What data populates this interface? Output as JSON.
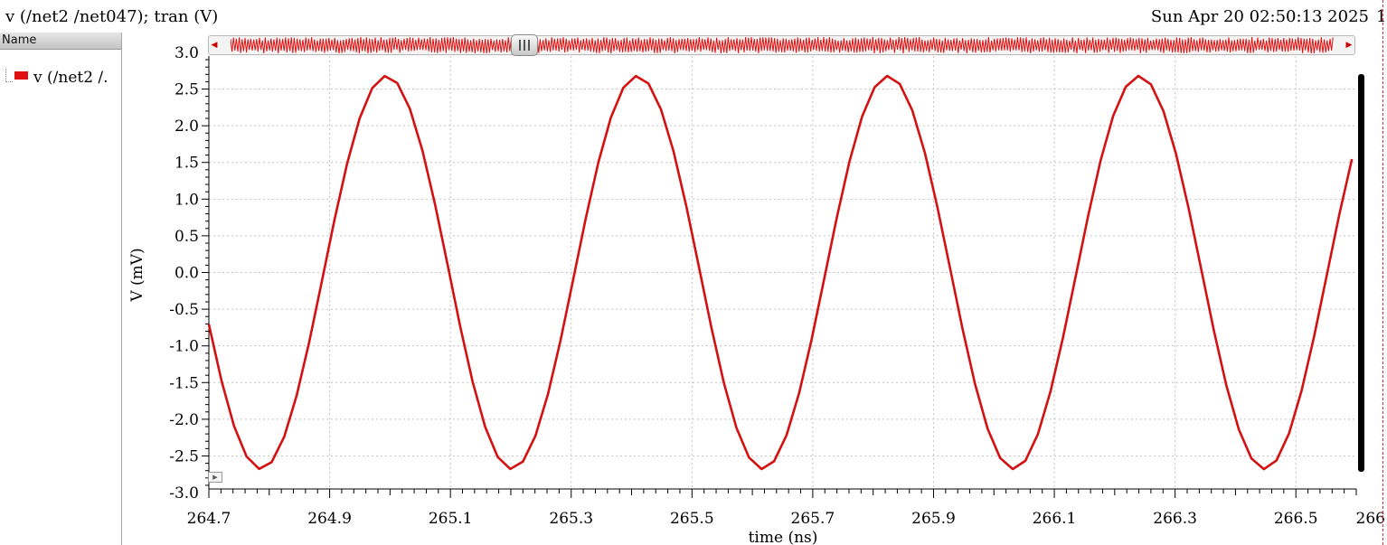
{
  "header": {
    "trace_title": "v (/net2 /net047); tran (V)",
    "timestamp": "Sun Apr 20 02:50:13 2025",
    "edge_fragment": "1"
  },
  "name_panel": {
    "header_label": "Name",
    "items": [
      {
        "label": "v (/net2 /.",
        "color": "#e01010"
      }
    ]
  },
  "icons": {
    "scroll_left": "triangle-left-icon",
    "scroll_right": "triangle-right-icon",
    "play": "play-icon"
  },
  "chart_data": {
    "type": "line",
    "xlabel": "time (ns)",
    "ylabel": "V (mV)",
    "xlim": [
      264.7,
      266.6
    ],
    "ylim": [
      -2.95,
      2.95
    ],
    "grid": true,
    "x_ticks": [
      "264.7",
      "264.9",
      "265.1",
      "265.3",
      "265.5",
      "265.7",
      "265.9",
      "266.1",
      "266.3",
      "266.5",
      "266"
    ],
    "y_ticks": [
      "3.0",
      "2.5",
      "2.0",
      "1.5",
      "1.0",
      "0.5",
      "0.0",
      "-0.5",
      "-1.0",
      "-1.5",
      "-2.0",
      "-2.5",
      "-3.0"
    ],
    "series": [
      {
        "color": "#d41010",
        "amplitude_mV": 2.68,
        "period_ns": 0.4155,
        "peak_time_ns": 264.994,
        "sample_step_ns": 0.0208,
        "x_start": 264.7,
        "x_end": 266.6
      }
    ]
  }
}
